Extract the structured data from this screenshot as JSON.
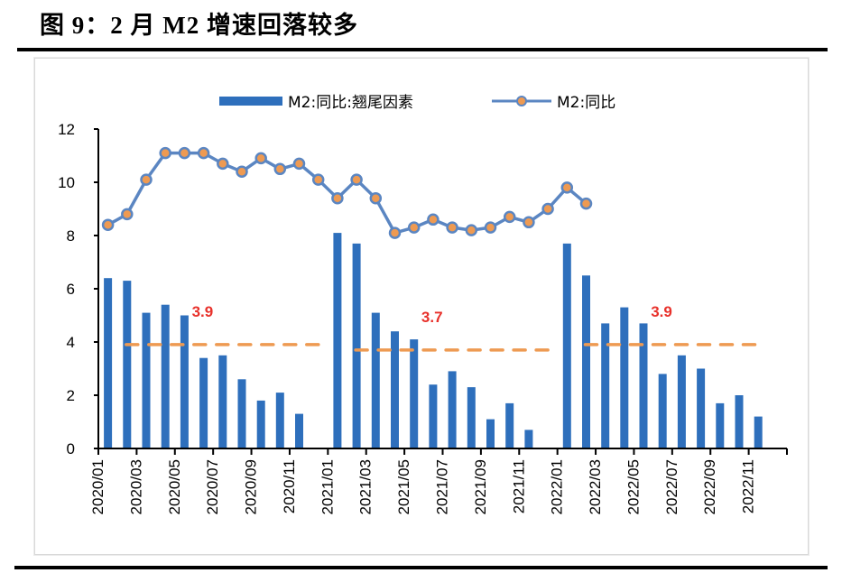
{
  "header": {
    "title": "图 9：2 月 M2 增速回落较多"
  },
  "chart_data": {
    "type": "bar+line",
    "title": "图 9：2 月 M2 增速回落较多",
    "xlabel": "",
    "ylabel": "",
    "ylim": [
      0,
      12
    ],
    "yticks": [
      0,
      2,
      4,
      6,
      8,
      10,
      12
    ],
    "grid": false,
    "legend_position": "top-center",
    "categories": [
      "2020/01",
      "2020/02",
      "2020/03",
      "2020/04",
      "2020/05",
      "2020/06",
      "2020/07",
      "2020/08",
      "2020/09",
      "2020/10",
      "2020/11",
      "2020/12",
      "2021/01",
      "2021/02",
      "2021/03",
      "2021/04",
      "2021/05",
      "2021/06",
      "2021/07",
      "2021/08",
      "2021/09",
      "2021/10",
      "2021/11",
      "2021/12",
      "2022/01",
      "2022/02",
      "2022/03",
      "2022/04",
      "2022/05",
      "2022/06",
      "2022/07",
      "2022/08",
      "2022/09",
      "2022/10",
      "2022/11",
      "2022/12"
    ],
    "xtick_labels": [
      "2020/01",
      "2020/03",
      "2020/05",
      "2020/07",
      "2020/09",
      "2020/11",
      "2021/01",
      "2021/03",
      "2021/05",
      "2021/07",
      "2021/09",
      "2021/11",
      "2022/01",
      "2022/03",
      "2022/05",
      "2022/07",
      "2022/09",
      "2022/11"
    ],
    "series": [
      {
        "name": "M2:同比:翘尾因素",
        "type": "bar",
        "color": "#2e6fbc",
        "values": [
          6.4,
          6.3,
          5.1,
          5.4,
          5.0,
          3.4,
          3.5,
          2.6,
          1.8,
          2.1,
          1.3,
          null,
          8.1,
          7.7,
          5.1,
          4.4,
          4.1,
          2.4,
          2.9,
          2.3,
          1.1,
          1.7,
          0.7,
          null,
          7.7,
          6.5,
          4.7,
          5.3,
          4.7,
          2.8,
          3.5,
          3.0,
          1.7,
          2.0,
          1.2,
          null
        ]
      },
      {
        "name": "M2:同比",
        "type": "line",
        "color": "#5b86c2",
        "marker_color": "#ee9a52",
        "values": [
          8.4,
          8.8,
          10.1,
          11.1,
          11.1,
          11.1,
          10.7,
          10.4,
          10.9,
          10.5,
          10.7,
          10.1,
          9.4,
          10.1,
          9.4,
          8.1,
          8.3,
          8.6,
          8.3,
          8.2,
          8.3,
          8.7,
          8.5,
          9.0,
          9.8,
          9.2,
          null,
          null,
          null,
          null,
          null,
          null,
          null,
          null,
          null,
          null
        ]
      }
    ],
    "annotations": [
      {
        "type": "dashed-line",
        "label": "3.9",
        "value": 3.9,
        "from": "2020/02",
        "to": "2020/12",
        "color": "#ee9a52",
        "label_color": "#e8312b",
        "label_at": "2020/06"
      },
      {
        "type": "dashed-line",
        "label": "3.7",
        "value": 3.7,
        "from": "2021/02",
        "to": "2021/12",
        "color": "#ee9a52",
        "label_color": "#e8312b",
        "label_at": "2021/06"
      },
      {
        "type": "dashed-line",
        "label": "3.9",
        "value": 3.9,
        "from": "2022/02",
        "to": "2022/11",
        "color": "#ee9a52",
        "label_color": "#e8312b",
        "label_at": "2022/06"
      }
    ]
  }
}
